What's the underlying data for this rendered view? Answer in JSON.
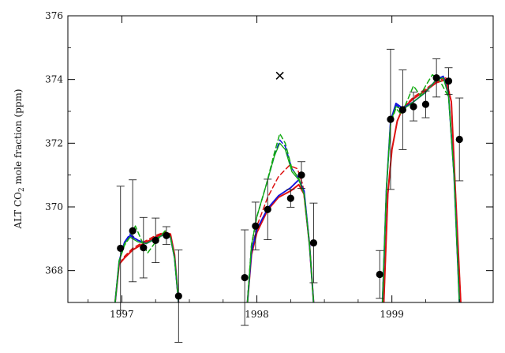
{
  "chart_data": {
    "type": "scatter",
    "title": "",
    "ylabel_parts": {
      "pre": "ALT CO",
      "sub": "2",
      "post": " mole fraction (ppm)"
    },
    "xlim": [
      1996.6,
      1999.75
    ],
    "ylim": [
      367.0,
      376.0
    ],
    "x_ticks": [
      1997,
      1998,
      1999
    ],
    "x_tick_labels": [
      "1997",
      "1998",
      "1999"
    ],
    "y_ticks": [
      368,
      370,
      372,
      374,
      376
    ],
    "y_tick_labels": [
      "368",
      "370",
      "372",
      "374",
      "376"
    ],
    "grid": false,
    "observations": [
      {
        "x": 1996.99,
        "y": 368.7,
        "err": 1.95
      },
      {
        "x": 1997.08,
        "y": 369.25,
        "err": 1.6
      },
      {
        "x": 1997.16,
        "y": 368.72,
        "err": 0.95
      },
      {
        "x": 1997.25,
        "y": 368.95,
        "err": 0.7
      },
      {
        "x": 1997.33,
        "y": 369.1,
        "err": 0.28
      },
      {
        "x": 1997.42,
        "y": 367.2,
        "err": 1.45
      },
      {
        "x": 1997.91,
        "y": 367.78,
        "err": 1.5
      },
      {
        "x": 1997.99,
        "y": 369.4,
        "err": 0.75
      },
      {
        "x": 1998.08,
        "y": 369.92,
        "err": 0.95
      },
      {
        "x": 1998.25,
        "y": 370.27,
        "err": 0.28
      },
      {
        "x": 1998.33,
        "y": 371.0,
        "err": 0.42
      },
      {
        "x": 1998.42,
        "y": 368.87,
        "err": 1.25
      },
      {
        "x": 1998.91,
        "y": 367.88,
        "err": 0.75
      },
      {
        "x": 1998.99,
        "y": 372.75,
        "err": 2.2
      },
      {
        "x": 1999.08,
        "y": 373.05,
        "err": 1.25
      },
      {
        "x": 1999.16,
        "y": 373.15,
        "err": 0.45
      },
      {
        "x": 1999.25,
        "y": 373.22,
        "err": 0.42
      },
      {
        "x": 1999.33,
        "y": 374.05,
        "err": 0.6
      },
      {
        "x": 1999.42,
        "y": 373.95,
        "err": 0.42
      },
      {
        "x": 1999.5,
        "y": 372.12,
        "err": 1.3
      }
    ],
    "outliers": [
      {
        "x": 1998.17,
        "y": 374.12,
        "marker": "x"
      }
    ],
    "series": [
      {
        "color": "#dd1111",
        "dash": "solid",
        "width": 2.0,
        "segments": [
          [
            [
              1996.95,
              367.0
            ],
            [
              1996.98,
              368.2
            ],
            [
              1997.02,
              368.4
            ],
            [
              1997.08,
              368.65
            ],
            [
              1997.16,
              368.85
            ],
            [
              1997.25,
              369.05
            ],
            [
              1997.32,
              369.2
            ],
            [
              1997.36,
              369.15
            ],
            [
              1997.39,
              368.5
            ],
            [
              1997.42,
              367.0
            ]
          ],
          [
            [
              1997.93,
              367.0
            ],
            [
              1997.96,
              368.5
            ],
            [
              1998.0,
              369.2
            ],
            [
              1998.08,
              369.9
            ],
            [
              1998.16,
              370.3
            ],
            [
              1998.25,
              370.5
            ],
            [
              1998.31,
              370.7
            ],
            [
              1998.35,
              370.4
            ],
            [
              1998.39,
              368.8
            ],
            [
              1998.42,
              367.0
            ]
          ],
          [
            [
              1998.94,
              367.0
            ],
            [
              1998.97,
              370.4
            ],
            [
              1999.0,
              371.8
            ],
            [
              1999.04,
              372.7
            ],
            [
              1999.08,
              373.1
            ],
            [
              1999.16,
              373.4
            ],
            [
              1999.25,
              373.65
            ],
            [
              1999.33,
              373.9
            ],
            [
              1999.4,
              374.0
            ],
            [
              1999.44,
              373.3
            ],
            [
              1999.47,
              370.5
            ],
            [
              1999.51,
              367.0
            ]
          ]
        ]
      },
      {
        "color": "#dd1111",
        "dash": "dashed",
        "width": 1.5,
        "segments": [
          [
            [
              1996.95,
              367.0
            ],
            [
              1996.98,
              368.2
            ],
            [
              1997.02,
              368.45
            ],
            [
              1997.08,
              368.7
            ],
            [
              1997.16,
              368.9
            ],
            [
              1997.25,
              369.1
            ],
            [
              1997.32,
              369.22
            ],
            [
              1997.36,
              369.12
            ],
            [
              1997.39,
              368.5
            ],
            [
              1997.42,
              367.0
            ]
          ],
          [
            [
              1997.93,
              367.0
            ],
            [
              1997.96,
              368.6
            ],
            [
              1998.0,
              369.4
            ],
            [
              1998.08,
              370.3
            ],
            [
              1998.16,
              370.95
            ],
            [
              1998.24,
              371.3
            ],
            [
              1998.3,
              371.2
            ],
            [
              1998.34,
              370.7
            ],
            [
              1998.39,
              368.8
            ],
            [
              1998.42,
              367.0
            ]
          ],
          [
            [
              1998.94,
              367.0
            ],
            [
              1998.97,
              370.4
            ],
            [
              1999.0,
              371.8
            ],
            [
              1999.04,
              372.7
            ],
            [
              1999.08,
              373.1
            ],
            [
              1999.16,
              373.45
            ],
            [
              1999.25,
              373.7
            ],
            [
              1999.33,
              373.95
            ],
            [
              1999.4,
              374.05
            ],
            [
              1999.44,
              373.3
            ],
            [
              1999.47,
              370.5
            ],
            [
              1999.51,
              367.0
            ]
          ]
        ]
      },
      {
        "color": "#1111dd",
        "dash": "solid",
        "width": 1.8,
        "segments": [
          [
            [
              1996.95,
              367.0
            ],
            [
              1996.98,
              368.3
            ],
            [
              1997.02,
              368.9
            ],
            [
              1997.06,
              369.1
            ],
            [
              1997.12,
              368.95
            ],
            [
              1997.18,
              368.85
            ],
            [
              1997.25,
              369.0
            ],
            [
              1997.32,
              369.15
            ],
            [
              1997.36,
              369.05
            ],
            [
              1997.39,
              368.4
            ],
            [
              1997.42,
              367.0
            ]
          ],
          [
            [
              1997.93,
              367.0
            ],
            [
              1997.96,
              368.6
            ],
            [
              1998.0,
              369.3
            ],
            [
              1998.08,
              369.95
            ],
            [
              1998.16,
              370.35
            ],
            [
              1998.25,
              370.6
            ],
            [
              1998.31,
              370.85
            ],
            [
              1998.35,
              370.5
            ],
            [
              1998.39,
              368.8
            ],
            [
              1998.42,
              367.0
            ]
          ],
          [
            [
              1998.93,
              367.0
            ],
            [
              1998.96,
              370.6
            ],
            [
              1998.99,
              372.7
            ],
            [
              1999.03,
              373.25
            ],
            [
              1999.08,
              373.1
            ],
            [
              1999.16,
              373.3
            ],
            [
              1999.25,
              373.6
            ],
            [
              1999.33,
              374.0
            ],
            [
              1999.38,
              374.1
            ],
            [
              1999.42,
              373.5
            ],
            [
              1999.46,
              371.0
            ],
            [
              1999.5,
              367.0
            ]
          ]
        ]
      },
      {
        "color": "#1111dd",
        "dash": "dashed",
        "width": 1.5,
        "segments": [
          [
            [
              1996.95,
              367.0
            ],
            [
              1996.98,
              368.3
            ],
            [
              1997.02,
              368.9
            ],
            [
              1997.06,
              369.15
            ],
            [
              1997.12,
              368.95
            ],
            [
              1997.18,
              368.85
            ],
            [
              1997.25,
              369.0
            ],
            [
              1997.32,
              369.15
            ],
            [
              1997.36,
              369.05
            ],
            [
              1997.39,
              368.4
            ],
            [
              1997.42,
              367.0
            ]
          ],
          [
            [
              1997.93,
              367.0
            ],
            [
              1997.96,
              368.8
            ],
            [
              1998.0,
              369.7
            ],
            [
              1998.07,
              370.7
            ],
            [
              1998.13,
              371.6
            ],
            [
              1998.17,
              372.1
            ],
            [
              1998.21,
              371.9
            ],
            [
              1998.26,
              371.2
            ],
            [
              1998.31,
              370.9
            ],
            [
              1998.35,
              370.4
            ],
            [
              1998.39,
              368.8
            ],
            [
              1998.42,
              367.0
            ]
          ],
          [
            [
              1998.93,
              367.0
            ],
            [
              1998.96,
              370.6
            ],
            [
              1998.99,
              372.7
            ],
            [
              1999.03,
              373.2
            ],
            [
              1999.08,
              373.05
            ],
            [
              1999.16,
              373.3
            ],
            [
              1999.25,
              373.6
            ],
            [
              1999.33,
              374.0
            ],
            [
              1999.38,
              374.1
            ],
            [
              1999.42,
              373.5
            ],
            [
              1999.46,
              371.0
            ],
            [
              1999.5,
              367.0
            ]
          ]
        ]
      },
      {
        "color": "#11aa11",
        "dash": "solid",
        "width": 1.3,
        "segments": [
          [
            [
              1996.95,
              367.0
            ],
            [
              1996.98,
              368.3
            ],
            [
              1997.02,
              368.85
            ],
            [
              1997.06,
              369.05
            ],
            [
              1997.12,
              368.9
            ],
            [
              1997.18,
              368.85
            ],
            [
              1997.25,
              369.0
            ],
            [
              1997.32,
              369.15
            ],
            [
              1997.36,
              369.05
            ],
            [
              1997.39,
              368.4
            ],
            [
              1997.42,
              367.0
            ]
          ],
          [
            [
              1997.93,
              367.0
            ],
            [
              1997.96,
              368.8
            ],
            [
              1998.0,
              369.7
            ],
            [
              1998.07,
              370.7
            ],
            [
              1998.13,
              371.6
            ],
            [
              1998.17,
              372.0
            ],
            [
              1998.21,
              371.8
            ],
            [
              1998.26,
              371.1
            ],
            [
              1998.31,
              370.85
            ],
            [
              1998.35,
              370.4
            ],
            [
              1998.39,
              368.8
            ],
            [
              1998.42,
              367.0
            ]
          ],
          [
            [
              1998.93,
              367.0
            ],
            [
              1998.96,
              370.6
            ],
            [
              1998.99,
              372.65
            ],
            [
              1999.03,
              373.15
            ],
            [
              1999.08,
              373.05
            ],
            [
              1999.16,
              373.3
            ],
            [
              1999.25,
              373.6
            ],
            [
              1999.33,
              374.0
            ],
            [
              1999.38,
              374.05
            ],
            [
              1999.42,
              373.5
            ],
            [
              1999.46,
              371.0
            ],
            [
              1999.5,
              367.0
            ]
          ]
        ]
      },
      {
        "color": "#11aa11",
        "dash": "dashed",
        "width": 1.5,
        "segments": [
          [
            [
              1996.95,
              367.0
            ],
            [
              1996.98,
              368.3
            ],
            [
              1997.02,
              368.8
            ],
            [
              1997.06,
              369.05
            ],
            [
              1997.1,
              369.4
            ],
            [
              1997.14,
              369.0
            ],
            [
              1997.19,
              368.55
            ],
            [
              1997.25,
              368.9
            ],
            [
              1997.32,
              369.25
            ],
            [
              1997.36,
              369.05
            ],
            [
              1997.39,
              368.4
            ],
            [
              1997.42,
              367.0
            ]
          ],
          [
            [
              1997.93,
              367.0
            ],
            [
              1997.96,
              368.8
            ],
            [
              1998.0,
              369.7
            ],
            [
              1998.07,
              370.7
            ],
            [
              1998.13,
              371.7
            ],
            [
              1998.17,
              372.3
            ],
            [
              1998.21,
              372.0
            ],
            [
              1998.26,
              371.2
            ],
            [
              1998.31,
              370.9
            ],
            [
              1998.35,
              370.4
            ],
            [
              1998.39,
              368.8
            ],
            [
              1998.42,
              367.0
            ]
          ],
          [
            [
              1998.93,
              367.0
            ],
            [
              1998.96,
              370.6
            ],
            [
              1998.99,
              372.6
            ],
            [
              1999.03,
              373.1
            ],
            [
              1999.07,
              372.9
            ],
            [
              1999.12,
              373.4
            ],
            [
              1999.16,
              373.8
            ],
            [
              1999.21,
              373.5
            ],
            [
              1999.25,
              373.8
            ],
            [
              1999.3,
              374.15
            ],
            [
              1999.35,
              374.0
            ],
            [
              1999.42,
              373.45
            ],
            [
              1999.46,
              371.0
            ],
            [
              1999.5,
              367.0
            ]
          ]
        ]
      }
    ]
  }
}
